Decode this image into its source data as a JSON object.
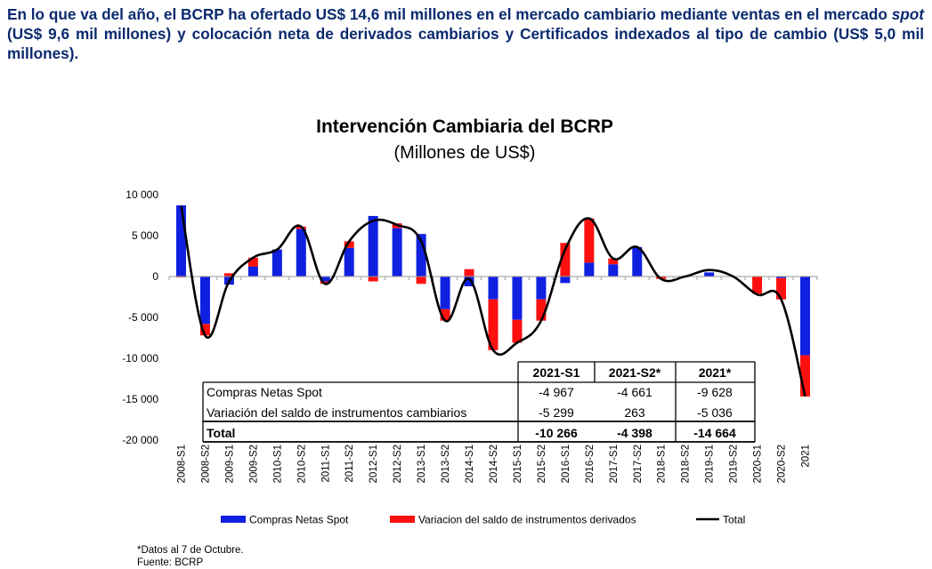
{
  "headline": {
    "part1": "En lo que va del año, el BCRP ha ofertado US$ 14,6 mil millones en el mercado cambiario mediante ventas en el mercado ",
    "emph": "spot",
    "part2": " (US$ 9,6 mil millones) y colocación neta de derivados cambiarios y Certificados indexados al tipo de cambio (US$ 5,0 mil millones)."
  },
  "chart_data": {
    "type": "bar",
    "title": "Intervención Cambiaria del BCRP",
    "subtitle": "(Millones de US$)",
    "stacked": true,
    "ylim": [
      -20000,
      10000
    ],
    "yticks": [
      10000,
      5000,
      0,
      -5000,
      -10000,
      -15000,
      -20000
    ],
    "ytick_labels": [
      "10 000",
      "5 000",
      "0",
      "-5 000",
      "-10 000",
      "-15 000",
      "-20 000"
    ],
    "categories": [
      "2008-S1",
      "2008-S2",
      "2009-S1",
      "2009-S2",
      "2010-S1",
      "2010-S2",
      "2011-S1",
      "2011-S2",
      "2012-S1",
      "2012-S2",
      "2013-S1",
      "2013-S2",
      "2014-S1",
      "2014-S2",
      "2015-S1",
      "2015-S2",
      "2016-S1",
      "2016-S2",
      "2017-S1",
      "2017-S2",
      "2018-S1",
      "2018-S2",
      "2019-S1",
      "2019-S2",
      "2020-S1",
      "2020-S2",
      "2021"
    ],
    "series": [
      {
        "name": "Compras Netas Spot",
        "kind": "bar",
        "color": "#1020e0",
        "values": [
          8700,
          -5800,
          -1000,
          1200,
          3300,
          5800,
          -600,
          3500,
          7400,
          5900,
          5200,
          -4000,
          -1200,
          -2800,
          -5300,
          -2800,
          -800,
          1700,
          1500,
          3600,
          0,
          0,
          500,
          0,
          0,
          -200,
          -9628
        ]
      },
      {
        "name": "Variacion del saldo de instrumentos derivados",
        "kind": "bar",
        "color": "#ff1010",
        "values": [
          -100,
          -1400,
          400,
          1100,
          0,
          300,
          -300,
          800,
          -600,
          600,
          -900,
          -1400,
          900,
          -6200,
          -2800,
          -2600,
          4100,
          5400,
          700,
          0,
          -300,
          0,
          0,
          0,
          -2100,
          -2600,
          -5036
        ]
      },
      {
        "name": "Total",
        "kind": "line",
        "color": "#000000",
        "values": [
          8600,
          -7200,
          -600,
          2300,
          3300,
          6100,
          -900,
          4300,
          6800,
          6300,
          4300,
          -5400,
          -300,
          -9000,
          -8100,
          -5400,
          3300,
          7100,
          2200,
          3600,
          -300,
          0,
          800,
          0,
          -2200,
          -2800,
          -14664
        ]
      }
    ],
    "legend_position": "bottom",
    "grid": false
  },
  "table": {
    "headers": [
      "2021-S1",
      "2021-S2*",
      "2021*"
    ],
    "rows": [
      {
        "label": "Compras Netas Spot",
        "values": [
          "-4 967",
          "-4 661",
          "-9 628"
        ]
      },
      {
        "label": "Variación del saldo de instrumentos cambiarios",
        "values": [
          "-5 299",
          "263",
          "-5 036"
        ]
      },
      {
        "label": "Total",
        "values": [
          "-10 266",
          "-4 398",
          "-14 664"
        ]
      }
    ]
  },
  "footnotes": {
    "note": "*Datos al 7 de Octubre.",
    "source": "Fuente: BCRP"
  }
}
